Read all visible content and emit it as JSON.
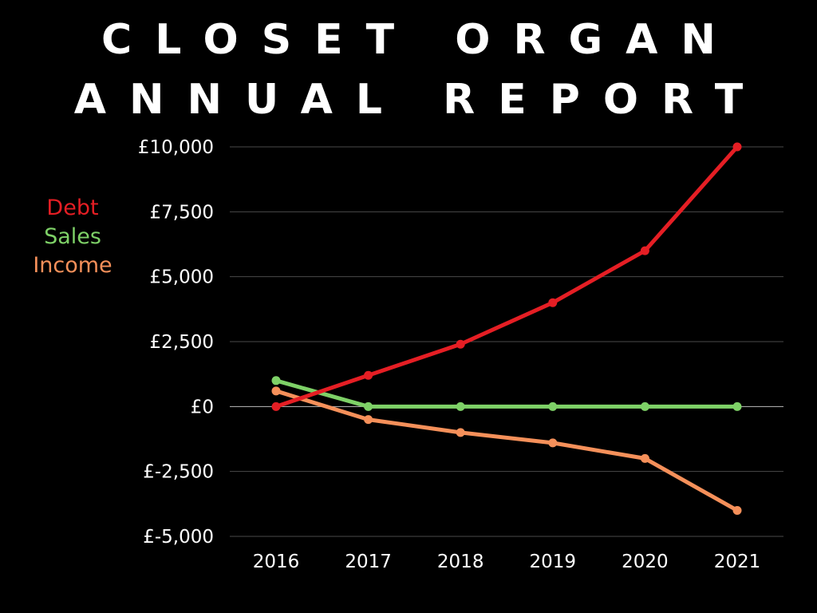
{
  "title": {
    "line1": "CLOSET ORGAN",
    "line2": "ANNUAL REPORT"
  },
  "legend": [
    {
      "label": "Debt",
      "color": "#e51e24"
    },
    {
      "label": "Sales",
      "color": "#7ed167"
    },
    {
      "label": "Income",
      "color": "#f5905a"
    }
  ],
  "chart_data": {
    "type": "line",
    "x": [
      "2016",
      "2017",
      "2018",
      "2019",
      "2020",
      "2021"
    ],
    "series": [
      {
        "name": "Debt",
        "color": "#e51e24",
        "values": [
          0,
          1200,
          2400,
          4000,
          6000,
          10000
        ]
      },
      {
        "name": "Sales",
        "color": "#7ed167",
        "values": [
          1000,
          0,
          0,
          0,
          0,
          0
        ]
      },
      {
        "name": "Income",
        "color": "#f5905a",
        "values": [
          600,
          -500,
          -1000,
          -1400,
          -2000,
          -4000
        ]
      }
    ],
    "ylim": [
      -5000,
      10000
    ],
    "yticks": [
      10000,
      7500,
      5000,
      2500,
      0,
      -2500,
      -5000
    ],
    "ytick_labels": [
      "£10,000",
      "£7,500",
      "£5,000",
      "£2,500",
      "£0",
      "£-2,500",
      "£-5,000"
    ],
    "grid": true,
    "legend_position": "left"
  }
}
